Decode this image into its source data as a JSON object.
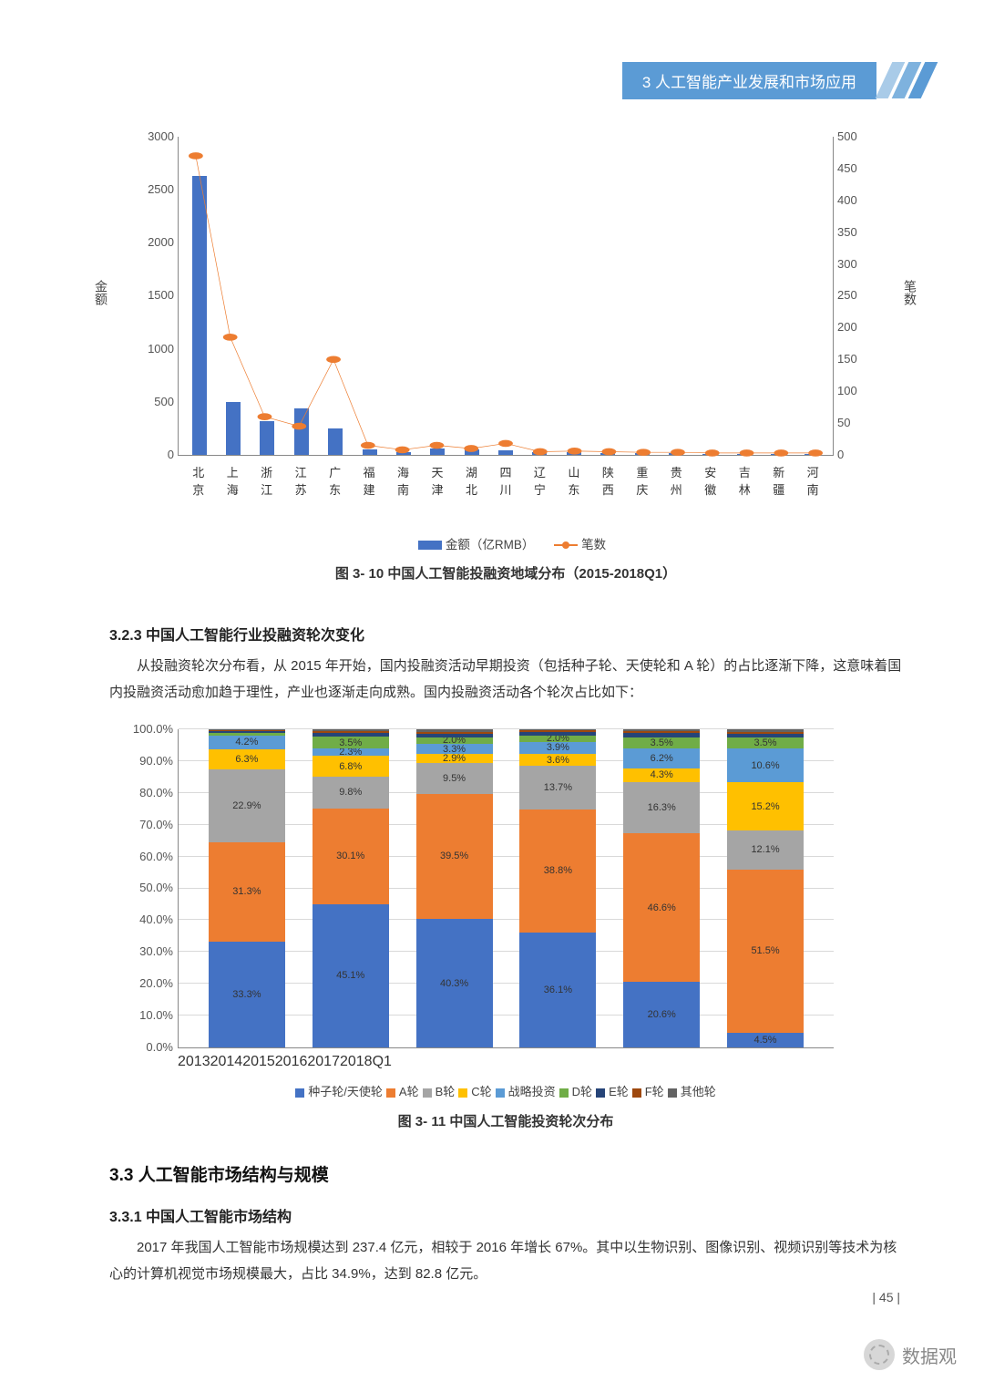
{
  "header": {
    "label": "3 人工智能产业发展和市场应用",
    "banner_color": "#5b9bd5",
    "stripe_colors": [
      "#a9cbe8",
      "#7eb2de",
      "#5b9bd5"
    ]
  },
  "chart1": {
    "type": "bar+line",
    "background_color": "#ffffff",
    "bar_color": "#4472c4",
    "line_color": "#ed7d31",
    "marker_size": 8,
    "categories": [
      "北京",
      "上海",
      "浙江",
      "江苏",
      "广东",
      "福建",
      "海南",
      "天津",
      "湖北",
      "四川",
      "辽宁",
      "山东",
      "陕西",
      "重庆",
      "贵州",
      "安徽",
      "吉林",
      "新疆",
      "河南"
    ],
    "bar_values": [
      2630,
      500,
      320,
      440,
      250,
      50,
      30,
      60,
      50,
      40,
      30,
      25,
      20,
      15,
      18,
      10,
      8,
      7,
      6
    ],
    "line_values": [
      470,
      185,
      60,
      45,
      150,
      15,
      8,
      15,
      10,
      18,
      5,
      6,
      5,
      4,
      4,
      3,
      3,
      3,
      3
    ],
    "y_left": {
      "label": "金额",
      "min": 0,
      "max": 3000,
      "step": 500,
      "ticks": [
        0,
        500,
        1000,
        1500,
        2000,
        2500,
        3000
      ]
    },
    "y_right": {
      "label": "笔数",
      "min": 0,
      "max": 500,
      "step": 50,
      "ticks": [
        0,
        50,
        100,
        150,
        200,
        250,
        300,
        350,
        400,
        450,
        500
      ]
    },
    "legend": {
      "bar": "金额（亿RMB）",
      "line": "笔数"
    },
    "caption": "图 3- 10 中国人工智能投融资地域分布（2015-2018Q1）",
    "axis_fontsize": 13,
    "caption_fontsize": 15
  },
  "sec323": {
    "title": "3.2.3 中国人工智能行业投融资轮次变化",
    "para": "从投融资轮次分布看，从 2015 年开始，国内投融资活动早期投资（包括种子轮、天使轮和 A 轮）的占比逐渐下降，这意味着国内投融资活动愈加趋于理性，产业也逐渐走向成熟。国内投融资活动各个轮次占比如下："
  },
  "chart2": {
    "type": "stacked_bar_percent",
    "categories": [
      "2013",
      "2014",
      "2015",
      "2016",
      "2017",
      "2018Q1"
    ],
    "series": [
      {
        "name": "种子轮/天使轮",
        "color": "#4472c4",
        "values": [
          33.3,
          45.1,
          40.3,
          36.1,
          20.6,
          4.5
        ]
      },
      {
        "name": "A轮",
        "color": "#ed7d31",
        "values": [
          31.3,
          30.1,
          39.5,
          38.8,
          46.6,
          51.5
        ]
      },
      {
        "name": "B轮",
        "color": "#a5a5a5",
        "values": [
          22.9,
          9.8,
          9.5,
          13.7,
          16.3,
          12.1
        ]
      },
      {
        "name": "C轮",
        "color": "#ffc000",
        "values": [
          6.3,
          6.8,
          2.9,
          3.6,
          4.3,
          15.2
        ]
      },
      {
        "name": "战略投资",
        "color": "#5b9bd5",
        "values": [
          4.2,
          2.3,
          3.3,
          3.9,
          6.2,
          10.6
        ]
      },
      {
        "name": "D轮",
        "color": "#70ad47",
        "values": [
          1.0,
          3.5,
          2.0,
          2.0,
          3.5,
          3.5
        ]
      },
      {
        "name": "E轮",
        "color": "#264478",
        "values": [
          0.5,
          1.2,
          1.0,
          1.0,
          1.5,
          1.1
        ]
      },
      {
        "name": "F轮",
        "color": "#9e480e",
        "values": [
          0.3,
          0.7,
          0.8,
          0.5,
          0.5,
          0.8
        ]
      },
      {
        "name": "其他轮",
        "color": "#636363",
        "values": [
          0.2,
          0.5,
          0.7,
          0.4,
          0.5,
          0.7
        ]
      }
    ],
    "show_labels_min_percent": 2.0,
    "ylim": [
      0,
      100
    ],
    "ytick_step": 10,
    "yticks": [
      "0.0%",
      "10.0%",
      "20.0%",
      "30.0%",
      "40.0%",
      "50.0%",
      "60.0%",
      "70.0%",
      "80.0%",
      "90.0%",
      "100.0%"
    ],
    "grid_color": "#d9d9d9",
    "caption": "图 3- 11  中国人工智能投资轮次分布"
  },
  "sec33": {
    "title": "3.3  人工智能市场结构与规模"
  },
  "sec331": {
    "title": "3.3.1 中国人工智能市场结构",
    "para": "2017 年我国人工智能市场规模达到 237.4 亿元，相较于 2016 年增长 67%。其中以生物识别、图像识别、视频识别等技术为核心的计算机视觉市场规模最大，占比 34.9%，达到 82.8 亿元。"
  },
  "page_number": "| 45 |",
  "watermark": "数据观"
}
